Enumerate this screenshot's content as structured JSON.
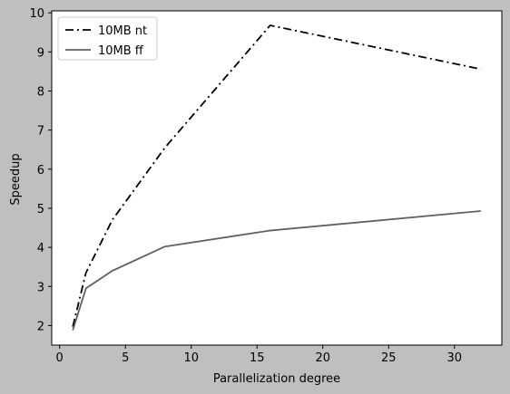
{
  "chart_data": {
    "type": "line",
    "title": "",
    "xlabel": "Parallelization degree",
    "ylabel": "Speedup",
    "xlim": [
      -0.6,
      33.6
    ],
    "ylim": [
      1.5,
      10.05
    ],
    "x_ticks": [
      0,
      5,
      10,
      15,
      20,
      25,
      30
    ],
    "y_ticks": [
      2,
      3,
      4,
      5,
      6,
      7,
      8,
      9,
      10
    ],
    "grid": false,
    "legend_position": "top-left",
    "series": [
      {
        "name": "10MB nt",
        "line_style": "dash-dot",
        "color": "#000000",
        "x": [
          1,
          2,
          4,
          8,
          16,
          32
        ],
        "y": [
          1.97,
          3.35,
          4.7,
          6.55,
          9.68,
          8.56
        ]
      },
      {
        "name": "10MB ff",
        "line_style": "solid",
        "color": "#606060",
        "x": [
          1,
          2,
          4,
          8,
          16,
          32
        ],
        "y": [
          1.88,
          2.95,
          3.4,
          4.02,
          4.43,
          4.93
        ]
      }
    ]
  },
  "colors": {
    "figure_background": "#bfbfbf",
    "plot_background": "#ffffff",
    "axis": "#000000"
  }
}
